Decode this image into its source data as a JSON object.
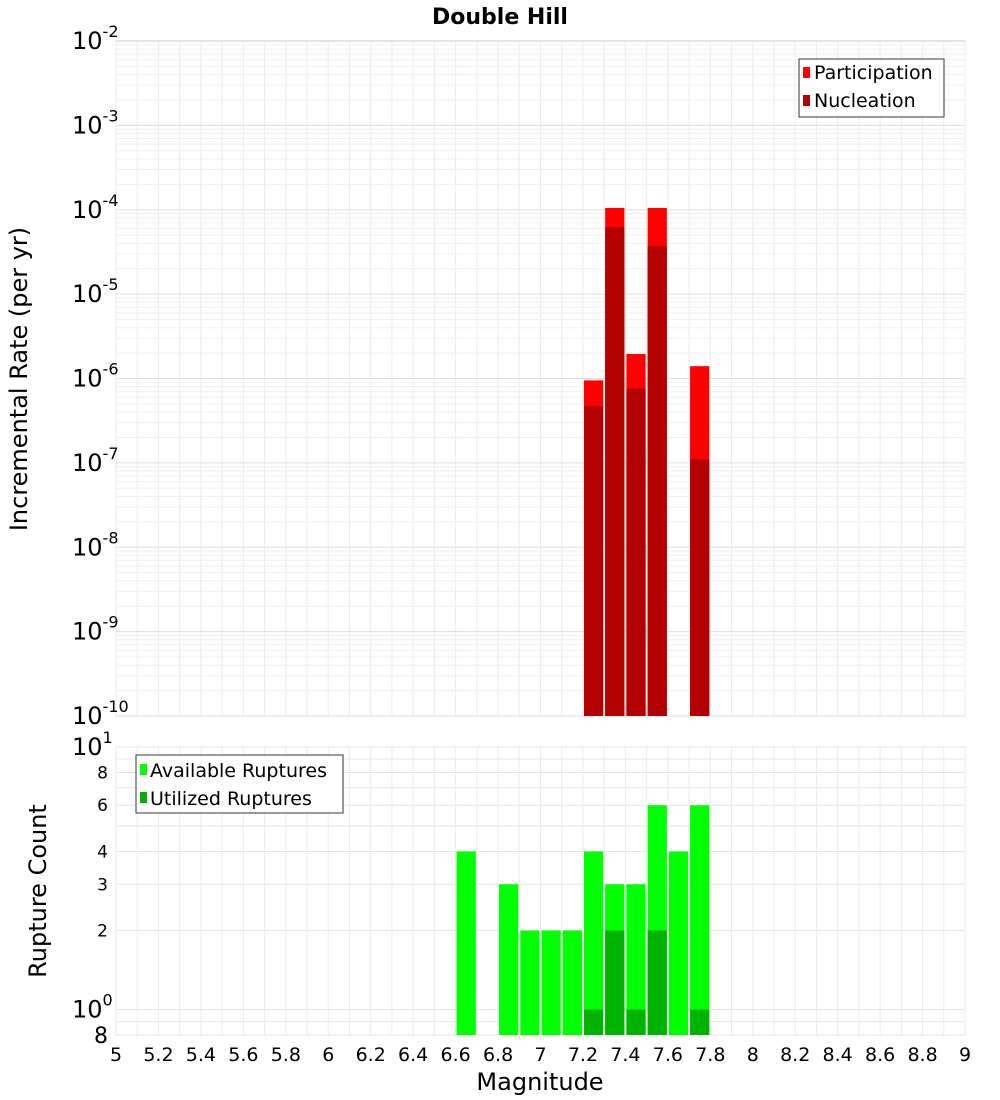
{
  "chart_data": [
    {
      "type": "bar",
      "title": "Double Hill",
      "ylabel": "Incremental Rate (per yr)",
      "yscale": "log",
      "ylim": [
        1e-10,
        0.01
      ],
      "ytick_labels": [
        {
          "base": "10",
          "exp": "-2"
        },
        {
          "base": "10",
          "exp": "-3"
        },
        {
          "base": "10",
          "exp": "-4"
        },
        {
          "base": "10",
          "exp": "-5"
        },
        {
          "base": "10",
          "exp": "-6"
        },
        {
          "base": "10",
          "exp": "-7"
        },
        {
          "base": "10",
          "exp": "-8"
        },
        {
          "base": "10",
          "exp": "-9"
        },
        {
          "base": "10",
          "exp": "-10"
        }
      ],
      "legend": {
        "placement": "top-right"
      },
      "grid": true,
      "x": [
        7.25,
        7.35,
        7.45,
        7.55,
        7.75
      ],
      "series": [
        {
          "name": "Participation",
          "color": "#ff0000",
          "values": [
            9.5e-07,
            0.000105,
            1.95e-06,
            0.000105,
            1.4e-06
          ]
        },
        {
          "name": "Nucleation",
          "color": "#b30000",
          "values": [
            4.7e-07,
            6.2e-05,
            7.6e-07,
            3.7e-05,
            1.1e-07
          ]
        }
      ]
    },
    {
      "type": "bar",
      "xlabel": "Magnitude",
      "ylabel": "Rupture Count",
      "yscale": "log",
      "ylim": [
        0.8,
        10
      ],
      "xlim": [
        5,
        9
      ],
      "xticks": [
        "5",
        "5.2",
        "5.4",
        "5.6",
        "5.8",
        "6",
        "6.2",
        "6.4",
        "6.6",
        "6.8",
        "7",
        "7.2",
        "7.4",
        "7.6",
        "7.8",
        "8",
        "8.2",
        "8.4",
        "8.6",
        "8.8",
        "9"
      ],
      "ytick_labels": [
        {
          "value": 8,
          "label": "8"
        },
        {
          "value": 6,
          "label": "6"
        },
        {
          "value": 4,
          "label": "4"
        },
        {
          "value": 3,
          "label": "3"
        },
        {
          "value": 2,
          "label": "2"
        }
      ],
      "ytick_power_labels": [
        {
          "value": 10,
          "base": "10",
          "exp": "1"
        },
        {
          "value": 1,
          "base": "10",
          "exp": "0"
        }
      ],
      "ybottom_label": "8",
      "legend": {
        "placement": "top-left"
      },
      "grid": true,
      "x": [
        6.65,
        6.85,
        6.95,
        7.05,
        7.15,
        7.25,
        7.35,
        7.45,
        7.55,
        7.65,
        7.75
      ],
      "series": [
        {
          "name": "Available Ruptures",
          "color": "#00ff00",
          "values": [
            4,
            3,
            2,
            2,
            2,
            4,
            3,
            3,
            6,
            4,
            6
          ]
        },
        {
          "name": "Utilized Ruptures",
          "color": "#00b300",
          "values": [
            0,
            0,
            0,
            0,
            0,
            1,
            2,
            1,
            2,
            0,
            1
          ]
        }
      ]
    }
  ]
}
